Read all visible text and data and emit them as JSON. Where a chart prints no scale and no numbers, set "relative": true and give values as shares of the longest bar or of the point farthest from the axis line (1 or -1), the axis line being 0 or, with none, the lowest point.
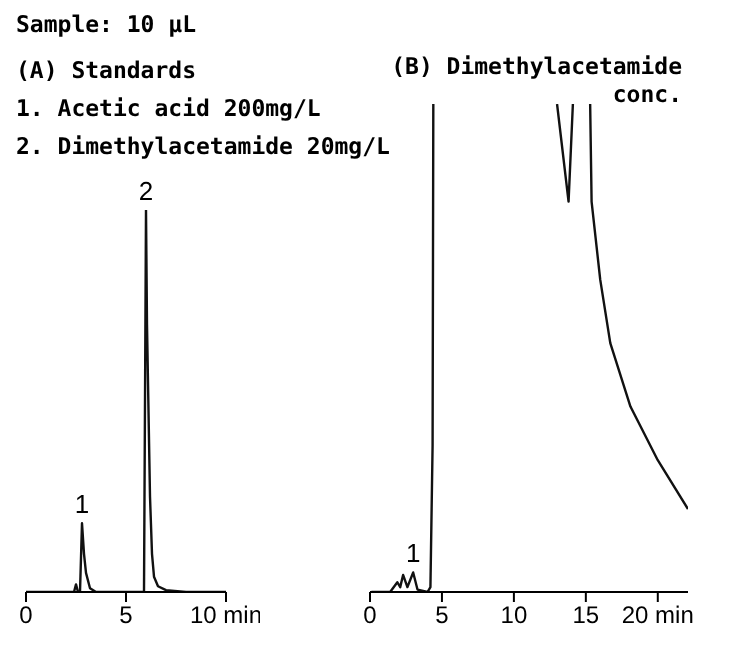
{
  "chart_data": [
    {
      "type": "line",
      "title": "(A) Standards",
      "relative": true,
      "xlim": [
        0,
        10
      ],
      "xticks": [
        0,
        5,
        {
          "value": 10,
          "label": "10 min"
        }
      ],
      "grid": false,
      "legend": false,
      "marker": "none",
      "annotations": [
        "Sample: 10 µL",
        "1. Acetic acid 200mg/L",
        "2. Dimethylacetamide 20mg/L",
        {
          "text": "1",
          "x": 2.8,
          "y": 0.18
        },
        {
          "text": "2",
          "x": 6.0,
          "y": 1
        }
      ],
      "series": [
        {
          "color": "#111111",
          "x": [
            0,
            2.4,
            2.5,
            2.6,
            2.7,
            2.8,
            2.9,
            3.0,
            3.2,
            3.5,
            5.9,
            6.0,
            6.05,
            6.1,
            6.2,
            6.3,
            6.4,
            6.6,
            7.0,
            8.0,
            10
          ],
          "values": [
            0,
            0,
            0.02,
            0,
            0,
            0.18,
            0.1,
            0.05,
            0.01,
            0,
            0,
            1,
            0.7,
            0.55,
            0.25,
            0.1,
            0.04,
            0.015,
            0.005,
            0,
            0
          ]
        }
      ]
    },
    {
      "type": "line",
      "title": "(B) Dimethylacetamide conc.",
      "relative": true,
      "xlim": [
        0,
        22.1
      ],
      "xticks": [
        0,
        5,
        10,
        15,
        {
          "value": 20,
          "label": "20 min"
        }
      ],
      "grid": false,
      "legend": false,
      "marker": "none",
      "annotations": [
        {
          "text": "1",
          "x": 3.0,
          "y": 0.04
        }
      ],
      "series": [
        {
          "color": "#111111",
          "x": [
            0.1,
            1.4,
            1.9,
            2.1,
            2.3,
            2.6,
            3.0,
            3.3,
            4.0,
            4.2,
            4.35,
            4.4,
            4.5,
            13.0,
            13.8,
            14.1,
            14.2,
            15.3,
            15.4,
            16.0,
            16.7,
            18.1,
            20.0,
            22.1
          ],
          "values": [
            0,
            0,
            0.02,
            0.01,
            0.035,
            0.01,
            0.04,
            0.005,
            0,
            0.01,
            0.3,
            1,
            null,
            1,
            0.8,
            1,
            null,
            1,
            0.8,
            0.64,
            0.51,
            0.38,
            0.27,
            0.17
          ]
        }
      ]
    }
  ]
}
